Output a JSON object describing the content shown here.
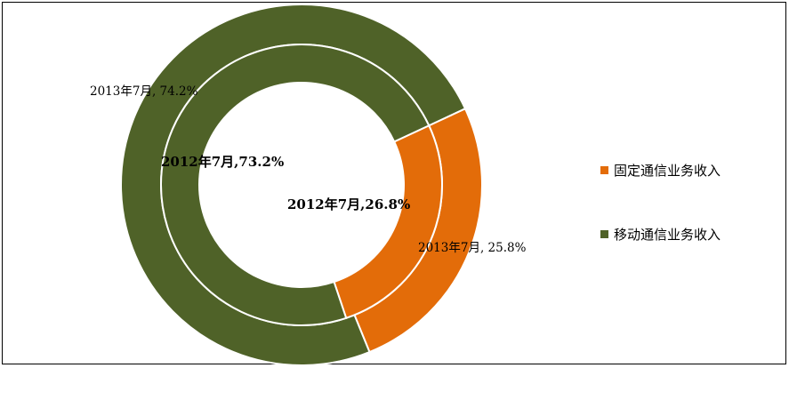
{
  "chart_data": {
    "type": "pie",
    "subtype": "donut-nested",
    "title": "",
    "categories": [
      "固定通信业务收入",
      "移动通信业务收入"
    ],
    "colors": {
      "固定通信业务收入": "#E36C09",
      "移动通信业务收入": "#4F6228"
    },
    "series": [
      {
        "ring": "inner",
        "values": [
          26.8,
          73.2
        ],
        "labels": [
          "2012年7月,26.8%",
          "2012年7月,73.2%"
        ]
      },
      {
        "ring": "outer",
        "values": [
          25.8,
          74.2
        ],
        "labels": [
          "2013年7月, 25.8%",
          "2013年7月, 74.2%"
        ]
      }
    ],
    "legend": {
      "position": "right",
      "items": [
        {
          "label": "固定通信业务收入",
          "color": "#E36C09"
        },
        {
          "label": "移动通信业务收入",
          "color": "#4F6228"
        }
      ]
    }
  }
}
